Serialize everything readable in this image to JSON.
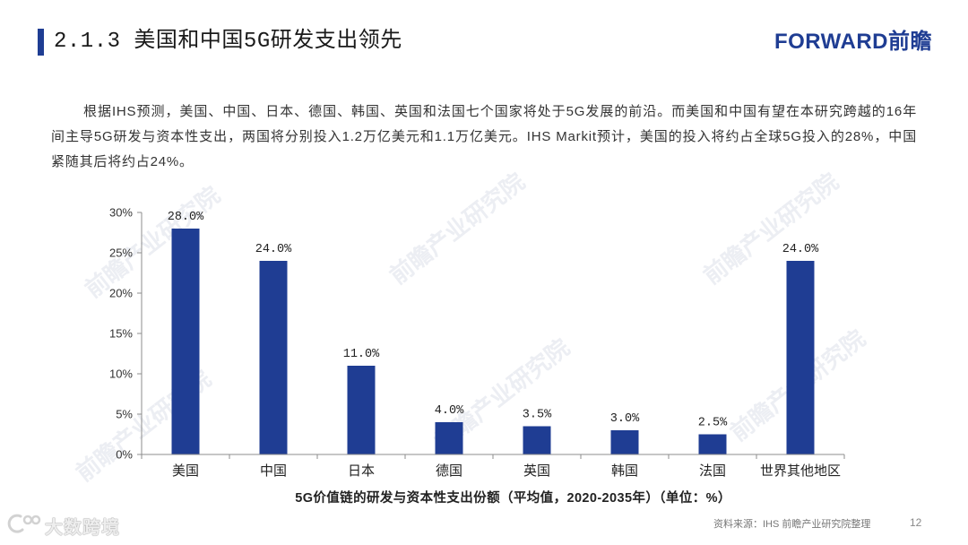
{
  "header": {
    "title": "2.1.3 美国和中国5G研发支出领先",
    "logo_text": "FORWARD前瞻"
  },
  "intro": {
    "text": "根据IHS预测，美国、中国、日本、德国、韩国、英国和法国七个国家将处于5G发展的前沿。而美国和中国有望在本研究跨越的16年间主导5G研发与资本性支出，两国将分别投入1.2万亿美元和1.1万亿美元。IHS Markit预计，美国的投入将约占全球5G投入的28%，中国紧随其后将约占24%。"
  },
  "chart_data": {
    "type": "bar",
    "title": "5G价值链的研发与资本性支出份额（平均值，2020-2035年）（单位：%）",
    "categories": [
      "美国",
      "中国",
      "日本",
      "德国",
      "英国",
      "韩国",
      "法国",
      "世界其他地区"
    ],
    "values": [
      28.0,
      24.0,
      11.0,
      4.0,
      3.5,
      3.0,
      2.5,
      24.0
    ],
    "unit": "%",
    "yticks": [
      0,
      5,
      10,
      15,
      20,
      25,
      30
    ],
    "ylim": [
      0,
      30
    ],
    "grid": false,
    "legend": "none",
    "data_labels": true,
    "bar_color": "#1f3d93"
  },
  "watermark": {
    "text": "前瞻产业研究院"
  },
  "footer": {
    "source": "资料来源：IHS 前瞻产业研究院整理",
    "page_number": "12",
    "brand_watermark": "大数跨境",
    "brand_icon": "brand-swirl-logo-icon"
  },
  "colors": {
    "accent": "#1f3d93",
    "text": "#222222"
  }
}
